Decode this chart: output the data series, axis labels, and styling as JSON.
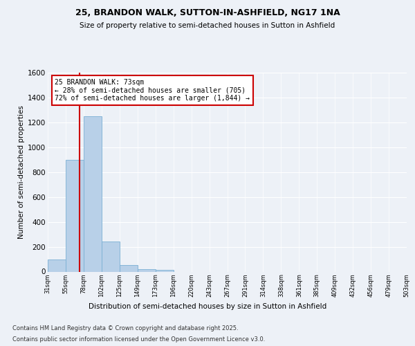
{
  "title1": "25, BRANDON WALK, SUTTON-IN-ASHFIELD, NG17 1NA",
  "title2": "Size of property relative to semi-detached houses in Sutton in Ashfield",
  "xlabel": "Distribution of semi-detached houses by size in Sutton in Ashfield",
  "ylabel": "Number of semi-detached properties",
  "bin_labels": [
    "31sqm",
    "55sqm",
    "78sqm",
    "102sqm",
    "125sqm",
    "149sqm",
    "173sqm",
    "196sqm",
    "220sqm",
    "243sqm",
    "267sqm",
    "291sqm",
    "314sqm",
    "338sqm",
    "361sqm",
    "385sqm",
    "409sqm",
    "432sqm",
    "456sqm",
    "479sqm",
    "503sqm"
  ],
  "bar_values": [
    100,
    900,
    1250,
    240,
    55,
    20,
    15,
    0,
    0,
    0,
    0,
    0,
    0,
    0,
    0,
    0,
    0,
    0,
    0,
    0
  ],
  "bar_color": "#b8d0e8",
  "bar_edge_color": "#7aafd4",
  "vline_color": "#cc0000",
  "annotation_text": "25 BRANDON WALK: 73sqm\n← 28% of semi-detached houses are smaller (705)\n72% of semi-detached houses are larger (1,844) →",
  "annotation_box_color": "#ffffff",
  "annotation_box_edge": "#cc0000",
  "ylim": [
    0,
    1600
  ],
  "yticks": [
    0,
    200,
    400,
    600,
    800,
    1000,
    1200,
    1400,
    1600
  ],
  "bg_color": "#edf1f7",
  "plot_bg_color": "#edf1f7",
  "grid_color": "#ffffff",
  "footer1": "Contains HM Land Registry data © Crown copyright and database right 2025.",
  "footer2": "Contains public sector information licensed under the Open Government Licence v3.0."
}
